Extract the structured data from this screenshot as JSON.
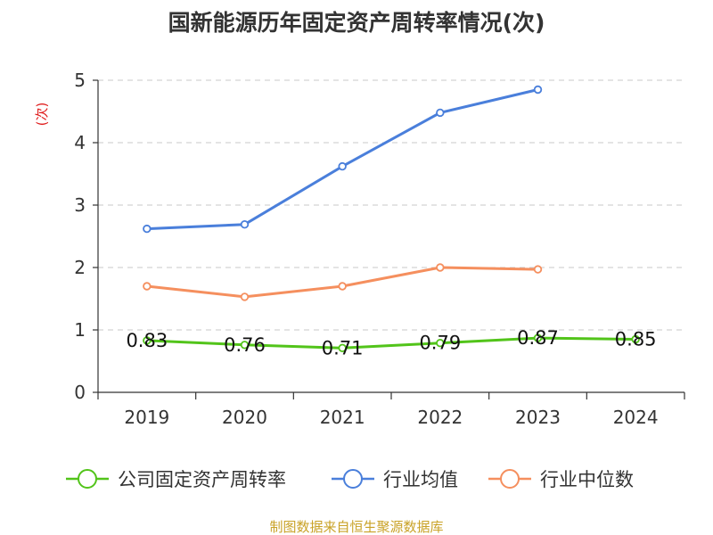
{
  "chart_data": {
    "type": "line",
    "title": "国新能源历年固定资产周转率情况(次)",
    "ylabel": "(次)",
    "xlabel": "",
    "ylim": [
      0,
      5
    ],
    "yticks": [
      0,
      1,
      2,
      3,
      4,
      5
    ],
    "categories": [
      "2019",
      "2020",
      "2021",
      "2022",
      "2023",
      "2024"
    ],
    "grid": true,
    "legend_position": "bottom",
    "series": [
      {
        "name": "公司固定资产周转率",
        "color": "#52c41a",
        "values": [
          0.83,
          0.76,
          0.71,
          0.79,
          0.87,
          0.85
        ],
        "labels": [
          "0.83",
          "0.76",
          "0.71",
          "0.79",
          "0.87",
          "0.85"
        ],
        "show_labels": true
      },
      {
        "name": "行业均值",
        "color": "#4a7fdb",
        "values": [
          2.62,
          2.69,
          3.62,
          4.48,
          4.85,
          null
        ],
        "show_labels": false
      },
      {
        "name": "行业中位数",
        "color": "#f58f5e",
        "values": [
          1.7,
          1.53,
          1.7,
          2.0,
          1.97,
          null
        ],
        "show_labels": false
      }
    ],
    "ylabel_color": "#e02020"
  },
  "source": {
    "text": "制图数据来自恒生聚源数据库",
    "color": "#c9a227"
  }
}
